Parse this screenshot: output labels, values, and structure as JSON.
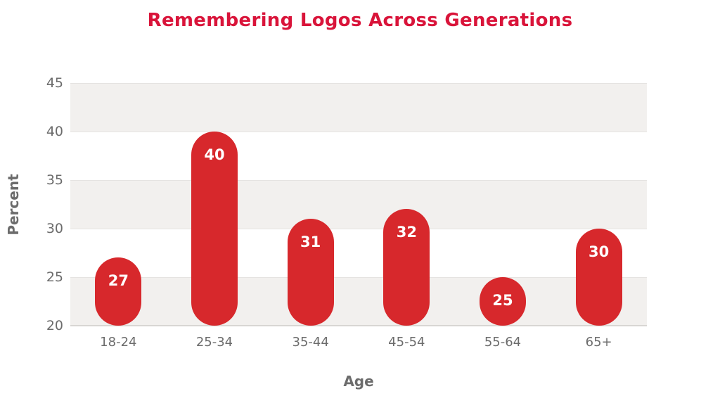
{
  "chart_data": {
    "type": "bar",
    "title": "Remembering Logos Across Generations",
    "categories": [
      "18-24",
      "25-34",
      "35-44",
      "45-54",
      "55-64",
      "65+"
    ],
    "values": [
      27,
      40,
      31,
      32,
      25,
      30
    ],
    "xlabel": "Age",
    "ylabel": "Percent",
    "ylim": [
      20,
      45
    ],
    "yticks": [
      45,
      40,
      35,
      30,
      25,
      20
    ],
    "grid": true,
    "legend": "none",
    "bar_color": "#d7282c",
    "value_label_color": "#ffffff",
    "band_color": "#f2f0ee",
    "title_color": "#d9143a",
    "axis_text_color": "#6c6c6c"
  }
}
